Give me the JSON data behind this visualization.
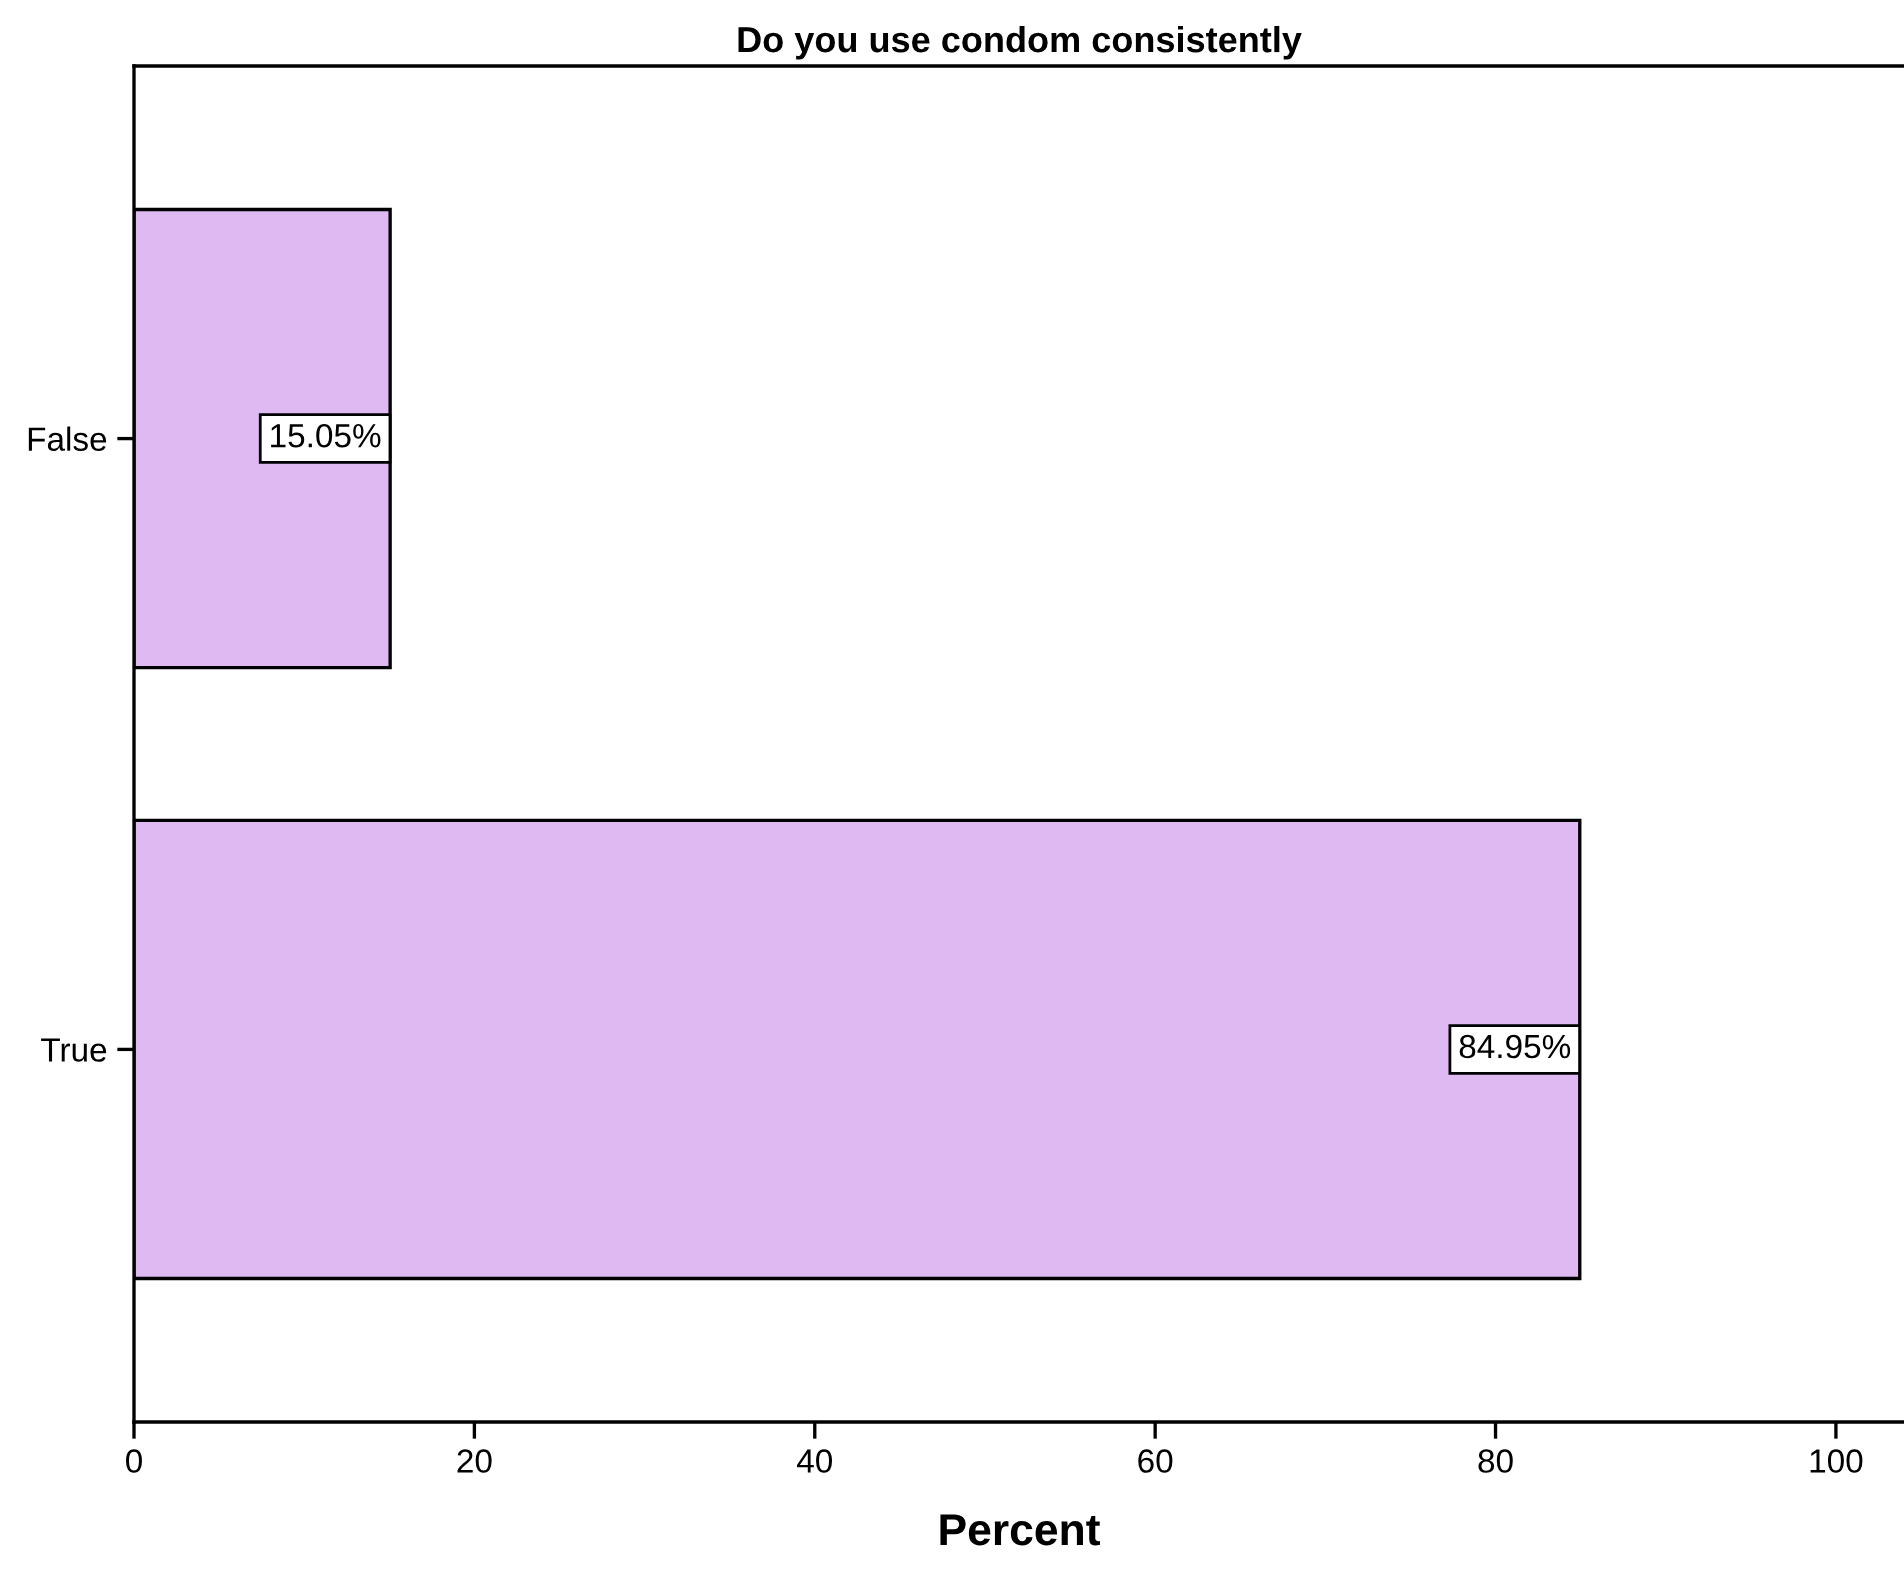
{
  "chart_data": {
    "type": "bar",
    "orientation": "horizontal",
    "title": "Do you use condom consistently",
    "xlabel": "Percent",
    "categories": [
      "False",
      "True"
    ],
    "values": [
      15.05,
      84.95
    ],
    "value_labels": [
      "15.05%",
      "84.95%"
    ],
    "color": "#dfb9f1",
    "xlim": [
      0,
      104
    ],
    "xticks": [
      0,
      20,
      40,
      60,
      80,
      100
    ],
    "grid": false,
    "legend": false
  }
}
